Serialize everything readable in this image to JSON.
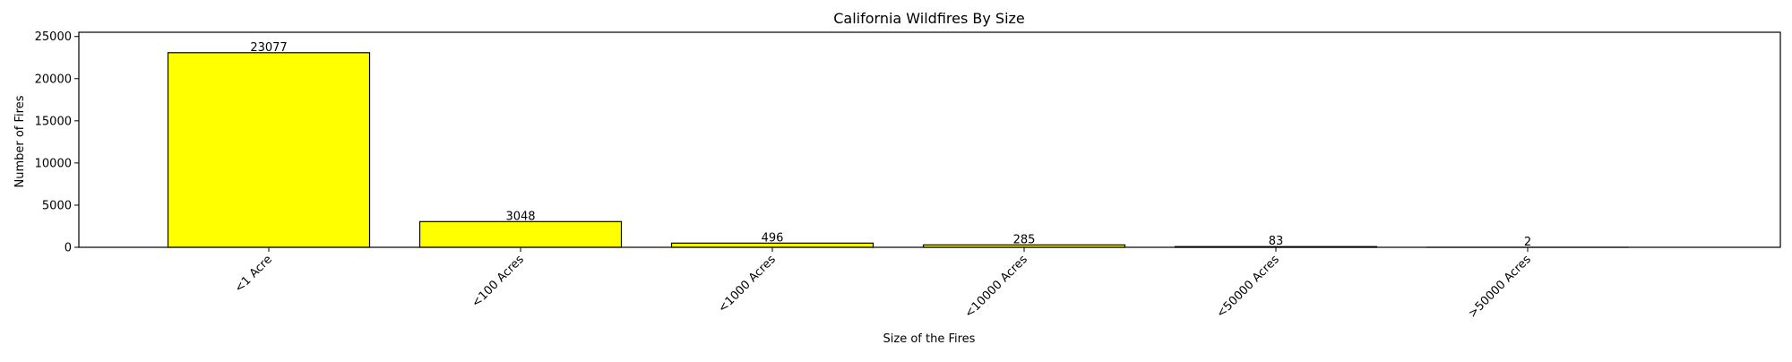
{
  "chart_data": {
    "type": "bar",
    "title": "California Wildfires By Size",
    "xlabel": "Size of the Fires",
    "ylabel": "Number of Fires",
    "categories": [
      "<1 Acre",
      "<100 Acres",
      "<1000 Acres",
      "<10000 Acres",
      "<50000 Acres",
      ">50000 Acres"
    ],
    "values": [
      23077,
      3048,
      496,
      285,
      83,
      2
    ],
    "data_labels": [
      "23077",
      "3048",
      "496",
      "285",
      "83",
      "2"
    ],
    "yticks": [
      0,
      5000,
      10000,
      15000,
      20000,
      25000
    ],
    "ytick_labels": [
      "0",
      "5000",
      "10000",
      "15000",
      "20000",
      "25000"
    ],
    "ylim": [
      0,
      25500
    ],
    "bar_color": "#ffff00",
    "edge_color": "#000000",
    "grid": false
  }
}
